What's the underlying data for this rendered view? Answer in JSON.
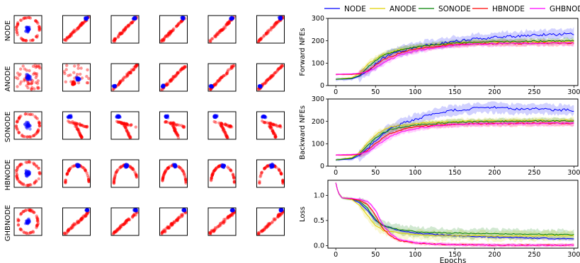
{
  "colors": {
    "red": "#ff0000",
    "blue": "#0000ff",
    "NODE": "#0000ff",
    "ANODE": "#e0d000",
    "SONODE": "#008000",
    "HBNODE": "#ff0000",
    "GHBNODE": "#ff00ff"
  },
  "chart_data": [
    {
      "type": "scatter",
      "panel": "grid",
      "rows": [
        "NODE",
        "ANODE",
        "SONODE",
        "HBNODE",
        "GHBNODE"
      ],
      "columns": 6,
      "description": "each cell shows red points (outer class) and blue points (inner class) in a 2-D feature space; axis ticks hidden",
      "cells": [
        [
          "ring",
          "diagonal",
          "diagonal",
          "diagonal",
          "diagonal",
          "diagonal"
        ],
        [
          "scatter",
          "scatter-blob",
          "diagonal",
          "diagonal",
          "diagonal",
          "diagonal"
        ],
        [
          "ring",
          "hook",
          "hook",
          "hook",
          "hook",
          "hook"
        ],
        [
          "ring",
          "arc",
          "arc",
          "arc",
          "arc",
          "arc"
        ],
        [
          "ellipse",
          "diagonal",
          "diagonal",
          "diagonal",
          "diagonal",
          "diagonal"
        ]
      ]
    },
    {
      "type": "line",
      "panel": "forward",
      "ylabel": "Forward NFEs",
      "xlabel": "",
      "xlim": [
        -10,
        305
      ],
      "ylim": [
        0,
        300
      ],
      "xticks": [
        0,
        50,
        100,
        150,
        200,
        250,
        300
      ],
      "yticks": [
        0,
        100,
        200,
        300
      ],
      "x": [
        0,
        20,
        30,
        40,
        50,
        60,
        70,
        80,
        100,
        125,
        150,
        175,
        200,
        225,
        250,
        275,
        300
      ],
      "series": [
        {
          "name": "NODE",
          "values": [
            28,
            30,
            42,
            65,
            95,
            122,
            140,
            152,
            170,
            185,
            198,
            208,
            215,
            220,
            225,
            228,
            232
          ]
        },
        {
          "name": "ANODE",
          "values": [
            28,
            35,
            55,
            95,
            120,
            140,
            150,
            160,
            172,
            182,
            190,
            193,
            195,
            195,
            195,
            196,
            196
          ]
        },
        {
          "name": "SONODE",
          "values": [
            28,
            32,
            45,
            80,
            110,
            135,
            148,
            158,
            172,
            183,
            190,
            193,
            196,
            197,
            198,
            199,
            200
          ]
        },
        {
          "name": "HBNODE",
          "values": [
            50,
            50,
            52,
            65,
            90,
            115,
            130,
            145,
            162,
            175,
            183,
            186,
            188,
            188,
            189,
            189,
            190
          ]
        },
        {
          "name": "GHBNODE",
          "values": [
            50,
            52,
            55,
            62,
            80,
            100,
            118,
            135,
            155,
            170,
            180,
            185,
            187,
            188,
            189,
            190,
            190
          ]
        }
      ]
    },
    {
      "type": "line",
      "panel": "backward",
      "ylabel": "Backward NFEs",
      "xlabel": "",
      "xlim": [
        -10,
        305
      ],
      "ylim": [
        0,
        300
      ],
      "xticks": [
        0,
        50,
        100,
        150,
        200,
        250,
        300
      ],
      "yticks": [
        0,
        100,
        200,
        300
      ],
      "x": [
        0,
        20,
        30,
        40,
        50,
        60,
        70,
        80,
        100,
        125,
        150,
        175,
        200,
        225,
        250,
        275,
        300
      ],
      "series": [
        {
          "name": "NODE",
          "values": [
            28,
            32,
            48,
            80,
            115,
            145,
            170,
            185,
            210,
            235,
            250,
            258,
            262,
            255,
            258,
            252,
            250
          ]
        },
        {
          "name": "ANODE",
          "values": [
            28,
            38,
            62,
            105,
            140,
            160,
            175,
            180,
            190,
            196,
            200,
            202,
            203,
            203,
            204,
            204,
            205
          ]
        },
        {
          "name": "SONODE",
          "values": [
            28,
            35,
            55,
            92,
            125,
            150,
            165,
            172,
            183,
            190,
            195,
            198,
            200,
            201,
            202,
            202,
            203
          ]
        },
        {
          "name": "HBNODE",
          "values": [
            50,
            50,
            52,
            70,
            100,
            128,
            148,
            160,
            175,
            183,
            187,
            189,
            190,
            190,
            191,
            191,
            191
          ]
        },
        {
          "name": "GHBNODE",
          "values": [
            50,
            52,
            55,
            65,
            88,
            112,
            135,
            150,
            168,
            180,
            186,
            189,
            190,
            191,
            191,
            192,
            192
          ]
        }
      ]
    },
    {
      "type": "line",
      "panel": "loss",
      "ylabel": "Loss",
      "xlabel": "Epochs",
      "xlim": [
        -10,
        305
      ],
      "ylim": [
        -0.05,
        1.3
      ],
      "xticks": [
        0,
        50,
        100,
        150,
        200,
        250,
        300
      ],
      "yticks": [
        0.0,
        0.5,
        1.0
      ],
      "x": [
        0,
        3,
        8,
        20,
        30,
        40,
        45,
        50,
        55,
        60,
        70,
        80,
        100,
        125,
        150,
        175,
        200,
        225,
        250,
        275,
        300
      ],
      "series": [
        {
          "name": "NODE",
          "values": [
            1.25,
            1.05,
            0.95,
            0.92,
            0.85,
            0.7,
            0.6,
            0.5,
            0.45,
            0.4,
            0.35,
            0.3,
            0.25,
            0.22,
            0.2,
            0.18,
            0.17,
            0.16,
            0.15,
            0.14,
            0.13
          ]
        },
        {
          "name": "ANODE",
          "values": [
            1.25,
            1.05,
            0.95,
            0.92,
            0.8,
            0.6,
            0.5,
            0.4,
            0.35,
            0.3,
            0.28,
            0.25,
            0.22,
            0.2,
            0.2,
            0.2,
            0.19,
            0.19,
            0.19,
            0.2,
            0.2
          ]
        },
        {
          "name": "SONODE",
          "values": [
            1.25,
            1.05,
            0.95,
            0.93,
            0.88,
            0.75,
            0.62,
            0.52,
            0.45,
            0.4,
            0.35,
            0.32,
            0.28,
            0.26,
            0.25,
            0.24,
            0.24,
            0.23,
            0.23,
            0.22,
            0.22
          ]
        },
        {
          "name": "HBNODE",
          "values": [
            1.25,
            1.05,
            0.95,
            0.93,
            0.9,
            0.82,
            0.72,
            0.6,
            0.45,
            0.32,
            0.18,
            0.1,
            0.05,
            0.03,
            0.02,
            0.015,
            0.01,
            0.01,
            0.01,
            0.01,
            0.01
          ]
        },
        {
          "name": "GHBNODE",
          "values": [
            1.25,
            1.05,
            0.95,
            0.94,
            0.92,
            0.88,
            0.8,
            0.7,
            0.55,
            0.4,
            0.22,
            0.12,
            0.06,
            0.03,
            0.02,
            0.015,
            0.01,
            0.01,
            0.01,
            0.01,
            0.01
          ]
        }
      ]
    }
  ],
  "legend": [
    "NODE",
    "ANODE",
    "SONODE",
    "HBNODE",
    "GHBNODE"
  ]
}
